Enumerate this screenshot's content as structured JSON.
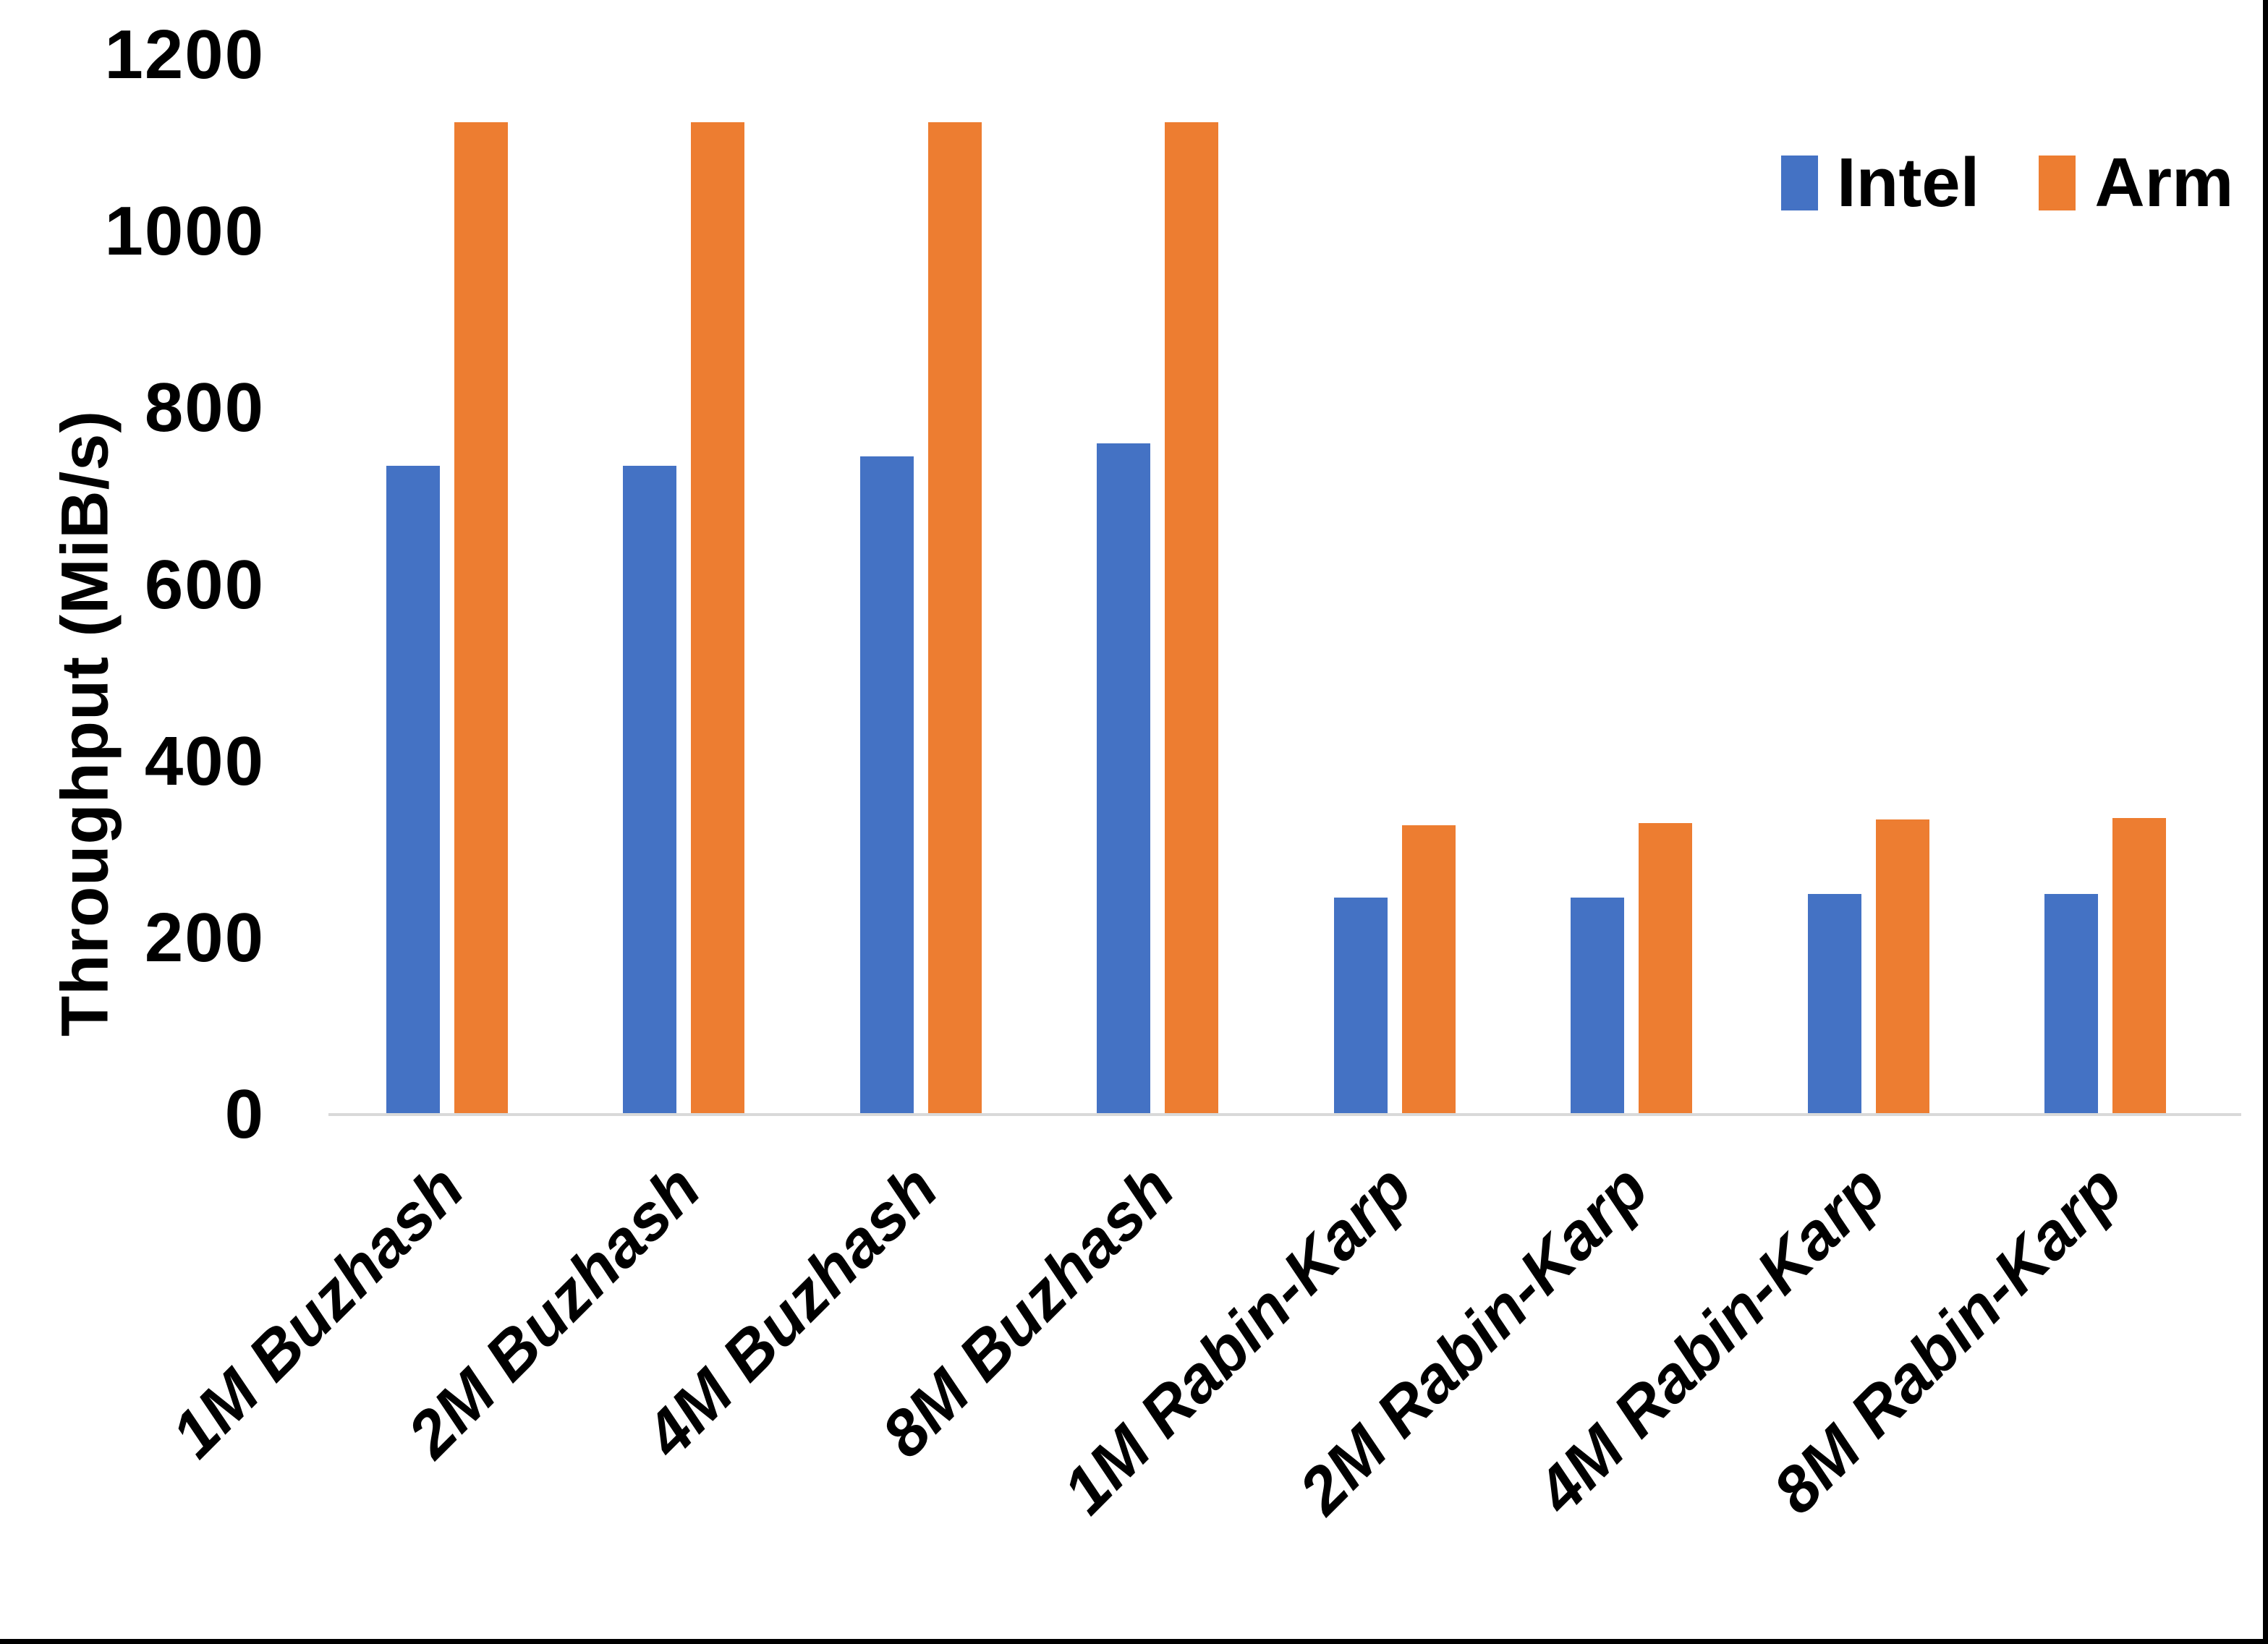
{
  "chart_data": {
    "type": "bar",
    "title": "",
    "categories": [
      "1M Buzhash",
      "2M Buzhash",
      "4M Buzhash",
      "8M Buzhash",
      "1M Rabin-Karp",
      "2M Rabin-Karp",
      "4M Rabin-Karp",
      "8M Rabin-Karp"
    ],
    "series": [
      {
        "name": "Intel",
        "color": "#4472C4",
        "values": [
          735,
          735,
          745,
          760,
          246,
          246,
          250,
          250
        ]
      },
      {
        "name": "Arm",
        "color": "#ED7D31",
        "values": [
          1124,
          1124,
          1124,
          1124,
          328,
          330,
          334,
          336
        ]
      }
    ],
    "xlabel": "",
    "ylabel": "Throughput (MiB/s)",
    "yticks": [
      0,
      200,
      400,
      600,
      800,
      1000,
      1200
    ],
    "ylim": [
      0,
      1200
    ],
    "grid": false,
    "legend_position": "top-right",
    "axis_line_color": "#D9D9D9",
    "text_color": "#000000",
    "background_color": "#FFFFFF"
  }
}
